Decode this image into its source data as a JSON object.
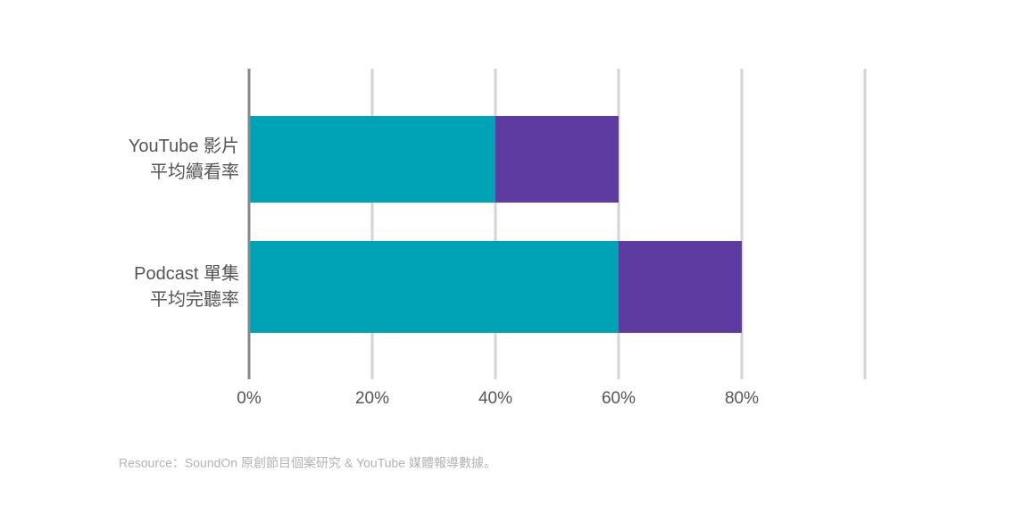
{
  "chart_data": {
    "type": "stacked-bar-horizontal",
    "categories": [
      [
        "YouTube 影片",
        "平均續看率"
      ],
      [
        "Podcast 單集",
        "平均完聽率"
      ]
    ],
    "series": [
      {
        "color": "#00a3b6",
        "values": [
          40,
          60
        ]
      },
      {
        "color": "#5d3ba1",
        "values": [
          20,
          20
        ]
      }
    ],
    "xlim": [
      0,
      100
    ],
    "xticks": [
      {
        "value": 0,
        "label": "0%"
      },
      {
        "value": 20,
        "label": "20%"
      },
      {
        "value": 40,
        "label": "40%"
      },
      {
        "value": 60,
        "label": "60%"
      },
      {
        "value": 80,
        "label": "80%"
      }
    ],
    "grid": true,
    "footnote": "Resource：SoundOn 原創節目個案研究 & YouTube 媒體報導數據。"
  }
}
